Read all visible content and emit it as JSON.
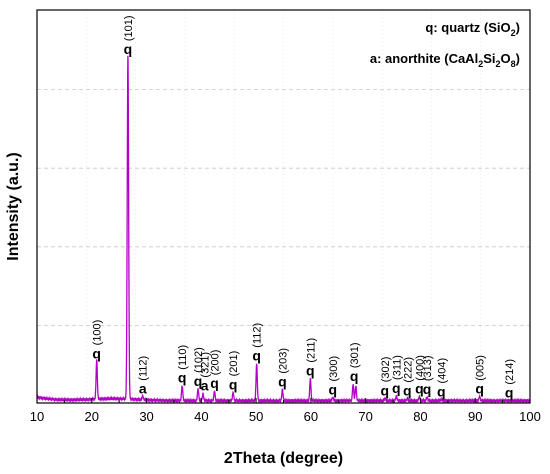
{
  "chart_data": {
    "type": "line",
    "xlabel": "2Theta (degree)",
    "ylabel": "Intensity (a.u.)",
    "xlim": [
      10,
      100
    ],
    "ylim": [
      0,
      100
    ],
    "x_ticks": [
      10,
      20,
      30,
      40,
      50,
      60,
      70,
      80,
      90,
      100
    ],
    "y_ticks_labeled": false,
    "grid": "horizontal dashed",
    "line_color": "#b400c8",
    "series": [
      {
        "peaks": [
          {
            "two_theta": 20.9,
            "intensity": 10.6
          },
          {
            "two_theta": 26.6,
            "intensity": 88.0
          },
          {
            "two_theta": 29.3,
            "intensity": 1.6
          },
          {
            "two_theta": 36.5,
            "intensity": 4.4
          },
          {
            "two_theta": 39.4,
            "intensity": 3.6
          },
          {
            "two_theta": 40.3,
            "intensity": 2.4
          },
          {
            "two_theta": 42.4,
            "intensity": 3.0
          },
          {
            "two_theta": 45.8,
            "intensity": 2.7
          },
          {
            "two_theta": 50.1,
            "intensity": 10.0
          },
          {
            "two_theta": 54.8,
            "intensity": 3.4
          },
          {
            "two_theta": 59.9,
            "intensity": 6.2
          },
          {
            "two_theta": 64.0,
            "intensity": 1.4
          },
          {
            "two_theta": 67.7,
            "intensity": 4.8
          },
          {
            "two_theta": 68.2,
            "intensity": 4.4
          },
          {
            "two_theta": 73.5,
            "intensity": 1.2
          },
          {
            "two_theta": 75.6,
            "intensity": 1.8
          },
          {
            "two_theta": 77.6,
            "intensity": 1.1
          },
          {
            "two_theta": 79.8,
            "intensity": 1.6
          },
          {
            "two_theta": 81.2,
            "intensity": 1.5
          },
          {
            "two_theta": 83.8,
            "intensity": 0.9
          },
          {
            "two_theta": 90.8,
            "intensity": 1.6
          },
          {
            "two_theta": 96.2,
            "intensity": 0.6
          }
        ],
        "baseline": 0.6
      }
    ],
    "annotations": [
      {
        "letter": "q",
        "miller": "(100)",
        "x": 20.9,
        "y": 10.6
      },
      {
        "letter": "q",
        "miller": "(101)",
        "x": 26.6,
        "y": 88.0
      },
      {
        "letter": "a",
        "miller": "(112)",
        "x": 29.3,
        "y": 1.6
      },
      {
        "letter": "q",
        "miller": "(110)",
        "x": 36.5,
        "y": 4.4
      },
      {
        "letter": "q",
        "miller": "(102)",
        "x": 39.4,
        "y": 3.6
      },
      {
        "letter": "a",
        "miller": "(321)",
        "x": 40.6,
        "y": 2.4
      },
      {
        "letter": "q",
        "miller": "(200)",
        "x": 42.4,
        "y": 3.0
      },
      {
        "letter": "q",
        "miller": "(201)",
        "x": 45.8,
        "y": 2.7
      },
      {
        "letter": "q",
        "miller": "(112)",
        "x": 50.1,
        "y": 10.0
      },
      {
        "letter": "q",
        "miller": "(203)",
        "x": 54.8,
        "y": 3.4
      },
      {
        "letter": "q",
        "miller": "(211)",
        "x": 59.9,
        "y": 6.2
      },
      {
        "letter": "q",
        "miller": "(300)",
        "x": 64.0,
        "y": 1.4
      },
      {
        "letter": "q",
        "miller": "(301)",
        "x": 67.9,
        "y": 4.8
      },
      {
        "letter": "q",
        "miller": "(302)",
        "x": 73.5,
        "y": 1.2
      },
      {
        "letter": "q",
        "miller": "(311)",
        "x": 75.6,
        "y": 1.8
      },
      {
        "letter": "q",
        "miller": "(222)",
        "x": 77.6,
        "y": 1.1
      },
      {
        "letter": "q",
        "miller": "(400)",
        "x": 79.8,
        "y": 1.6
      },
      {
        "letter": "q",
        "miller": "(313)",
        "x": 81.2,
        "y": 1.5
      },
      {
        "letter": "q",
        "miller": "(404)",
        "x": 83.8,
        "y": 0.9
      },
      {
        "letter": "q",
        "miller": "(005)",
        "x": 90.8,
        "y": 1.6
      },
      {
        "letter": "q",
        "miller": "(214)",
        "x": 96.2,
        "y": 0.6
      }
    ],
    "legend": {
      "placement": "top-right",
      "entries": [
        {
          "prefix": "q: quartz (SiO",
          "sub1": "2",
          "mid1": ")",
          "sub2": "",
          "mid2": "",
          "sub3": "",
          "suffix": ""
        },
        {
          "prefix": "a: anorthite (CaAl",
          "sub1": "2",
          "mid1": "Si",
          "sub2": "2",
          "mid2": "O",
          "sub3": "8",
          "suffix": ")"
        }
      ]
    }
  }
}
